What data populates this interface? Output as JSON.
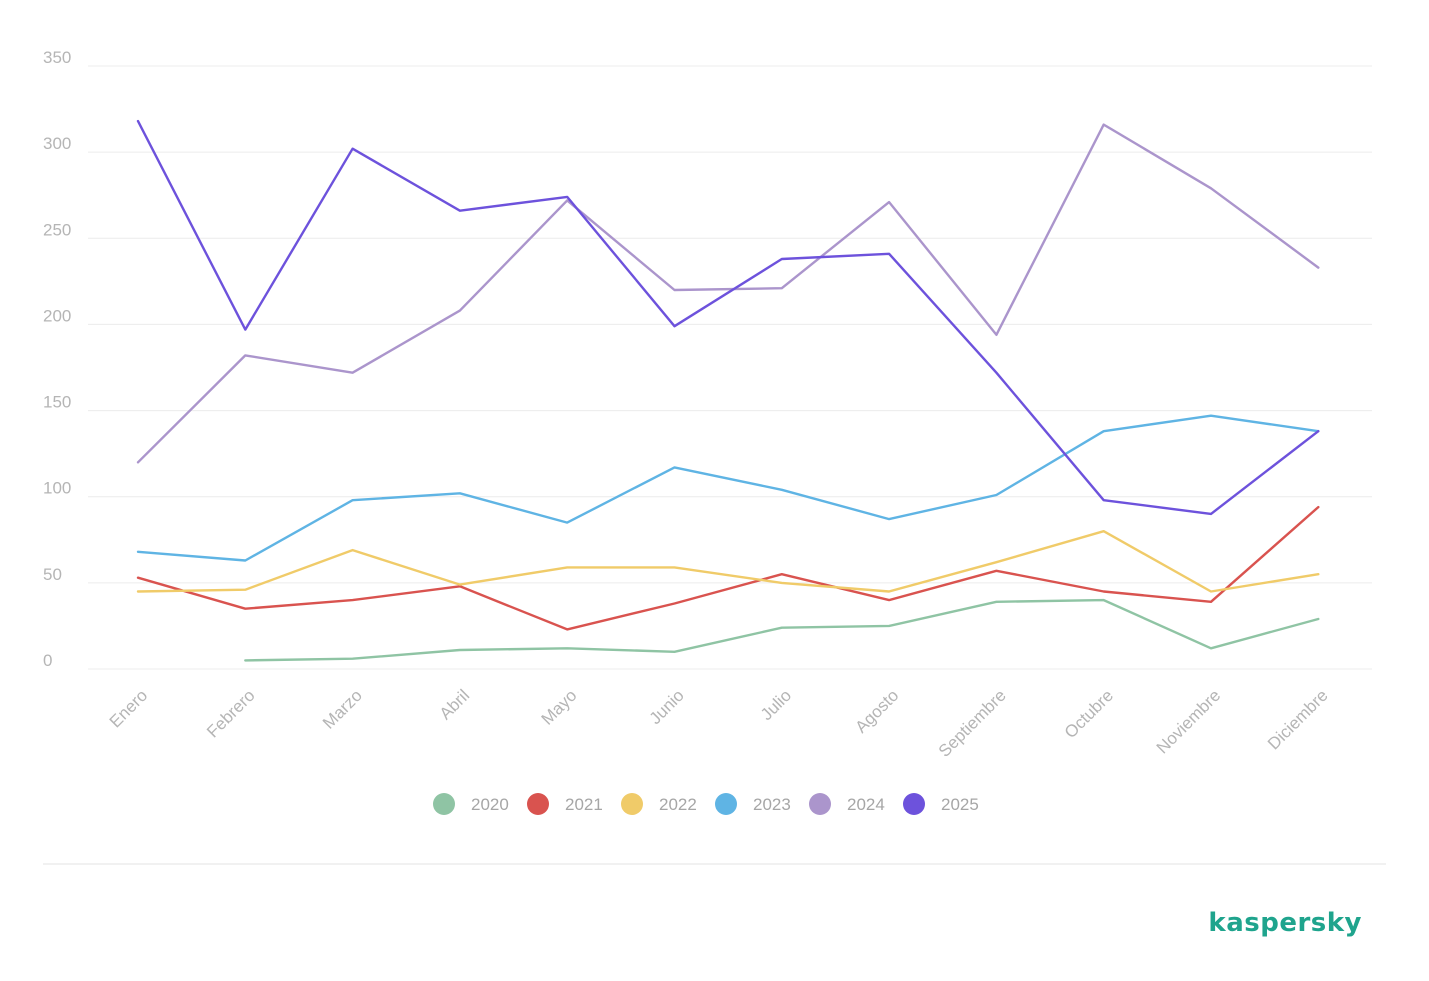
{
  "brand": {
    "name": "kaspersky",
    "color": "#1fa48d"
  },
  "chart_data": {
    "type": "line",
    "title": "",
    "xlabel": "",
    "ylabel": "",
    "ylim": [
      0,
      350
    ],
    "yticks": [
      0,
      50,
      100,
      150,
      200,
      250,
      300,
      350
    ],
    "grid": true,
    "legend_position": "bottom-center",
    "categories": [
      "Enero",
      "Febrero",
      "Marzo",
      "Abril",
      "Mayo",
      "Junio",
      "Julio",
      "Agosto",
      "Septiembre",
      "Octubre",
      "Noviembre",
      "Diciembre"
    ],
    "series": [
      {
        "name": "2020",
        "color": "#8fc4a4",
        "values": [
          null,
          5,
          6,
          11,
          12,
          10,
          24,
          25,
          39,
          40,
          12,
          29
        ]
      },
      {
        "name": "2021",
        "color": "#d9534f",
        "values": [
          53,
          35,
          40,
          48,
          23,
          38,
          55,
          40,
          57,
          45,
          39,
          94
        ]
      },
      {
        "name": "2022",
        "color": "#f0cb69",
        "values": [
          45,
          46,
          69,
          49,
          59,
          59,
          50,
          45,
          62,
          80,
          45,
          55
        ]
      },
      {
        "name": "2023",
        "color": "#5fb4e4",
        "values": [
          68,
          63,
          98,
          102,
          85,
          117,
          104,
          87,
          101,
          138,
          147,
          138
        ]
      },
      {
        "name": "2024",
        "color": "#ab95cc",
        "values": [
          120,
          182,
          172,
          208,
          272,
          220,
          221,
          271,
          194,
          316,
          279,
          233
        ]
      },
      {
        "name": "2025",
        "color": "#6d52dc",
        "values": [
          318,
          197,
          302,
          266,
          274,
          199,
          238,
          241,
          172,
          98,
          90,
          138
        ]
      }
    ]
  }
}
